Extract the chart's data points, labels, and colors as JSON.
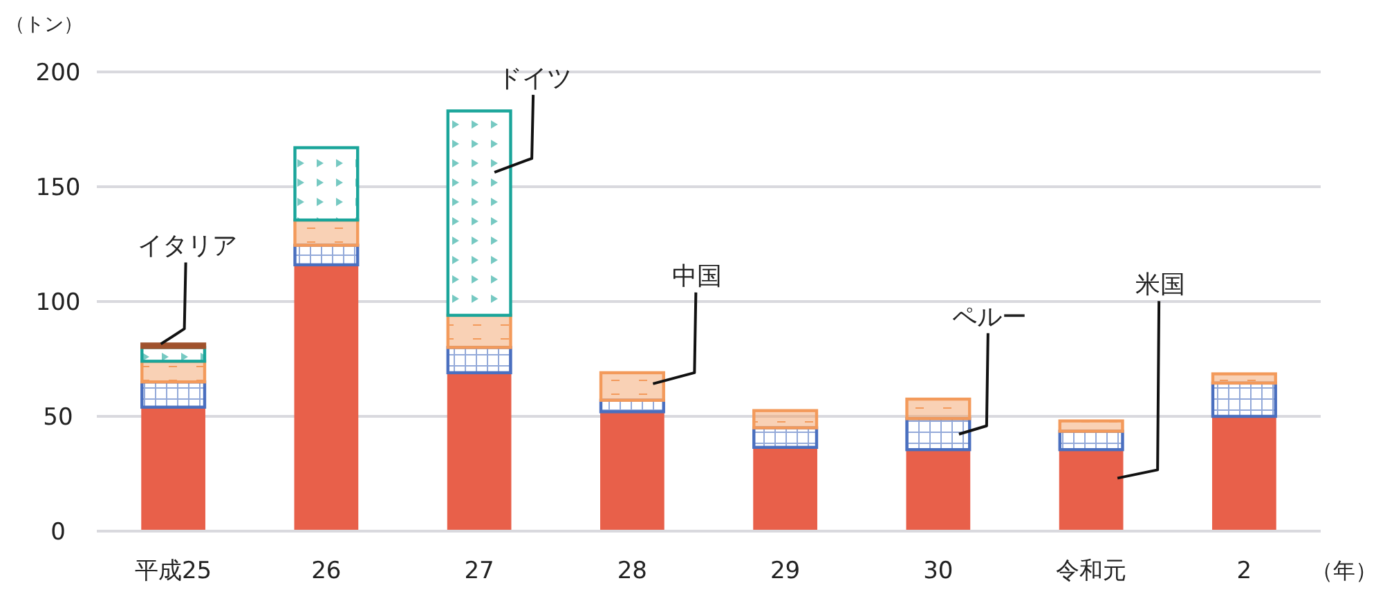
{
  "chart_data": {
    "type": "bar",
    "stacked": true,
    "ylabel": "（トン）",
    "xlabel": "（年）",
    "categories": [
      "平成25",
      "26",
      "27",
      "28",
      "29",
      "30",
      "令和元",
      "2"
    ],
    "ylim": [
      0,
      200
    ],
    "yticks": [
      0,
      50,
      100,
      150,
      200
    ],
    "grid": "y",
    "series": [
      {
        "name": "米国",
        "color": "#e8604a",
        "values": [
          54,
          116,
          69,
          52,
          36.5,
          35.5,
          35.5,
          50
        ]
      },
      {
        "name": "ペルー",
        "color": "#4a6fbf",
        "values": [
          11,
          8.5,
          11,
          5,
          8.5,
          13.5,
          8,
          14.5
        ]
      },
      {
        "name": "中国",
        "color": "#f39a5b",
        "values": [
          9,
          11,
          14,
          12,
          7.5,
          8.5,
          4.5,
          4
        ]
      },
      {
        "name": "ドイツ",
        "color": "#1aa59a",
        "values": [
          6,
          31.5,
          89,
          null,
          null,
          null,
          null,
          null
        ]
      },
      {
        "name": "イタリア",
        "color": "#a0522d",
        "values": [
          1.5,
          null,
          null,
          null,
          null,
          null,
          null,
          null
        ]
      }
    ]
  }
}
